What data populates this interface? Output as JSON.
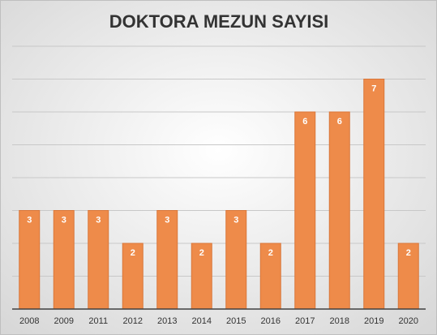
{
  "chart_data": {
    "type": "bar",
    "title": "DOKTORA MEZUN SAYISI",
    "categories": [
      "2008",
      "2009",
      "2011",
      "2012",
      "2013",
      "2014",
      "2015",
      "2016",
      "2017",
      "2018",
      "2019",
      "2020"
    ],
    "values": [
      3,
      3,
      3,
      2,
      3,
      2,
      3,
      2,
      6,
      6,
      7,
      2
    ],
    "color": "#ee8b4a",
    "ylim": [
      0,
      8
    ],
    "yticks": [
      0,
      1,
      2,
      3,
      4,
      5,
      6,
      7,
      8
    ],
    "grid": true
  }
}
